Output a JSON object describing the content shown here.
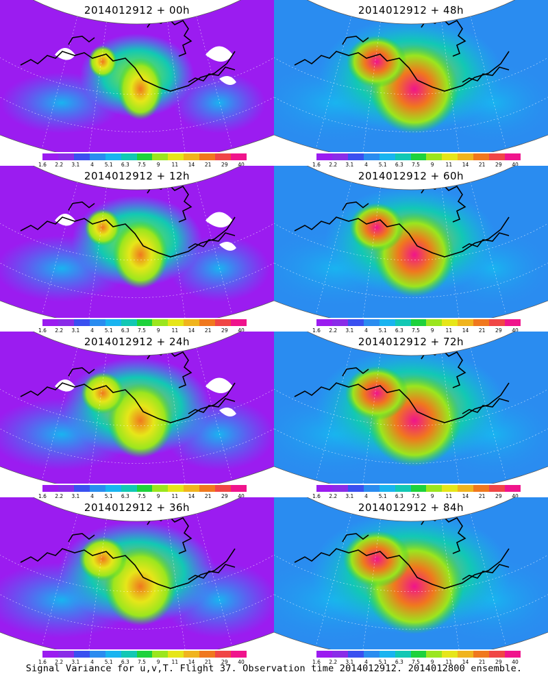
{
  "panels": [
    {
      "title": "2014012912 + 00h",
      "lead": "00h"
    },
    {
      "title": "2014012912 + 48h",
      "lead": "48h"
    },
    {
      "title": "2014012912 + 12h",
      "lead": "12h"
    },
    {
      "title": "2014012912 + 60h",
      "lead": "60h"
    },
    {
      "title": "2014012912 + 24h",
      "lead": "24h"
    },
    {
      "title": "2014012912 + 72h",
      "lead": "72h"
    },
    {
      "title": "2014012912 + 36h",
      "lead": "36h"
    },
    {
      "title": "2014012912 + 84h",
      "lead": "84h"
    }
  ],
  "colorbar": {
    "ticks": [
      "1.6",
      "2.2",
      "3.1",
      "4",
      "5.1",
      "6.3",
      "7.5",
      "9",
      "11",
      "14",
      "21",
      "29",
      "40"
    ],
    "colors": [
      "#9b1cf0",
      "#8a2ce8",
      "#3a50f0",
      "#2a8cf0",
      "#19b4f0",
      "#12c8b4",
      "#1ed23c",
      "#9be61e",
      "#e6e619",
      "#f0b41e",
      "#f0781e",
      "#f04646",
      "#f0148c"
    ]
  },
  "footer": "Signal Variance for u,v,T. Flight 37. Observation time 2014012912. 2014012800 ensemble."
}
